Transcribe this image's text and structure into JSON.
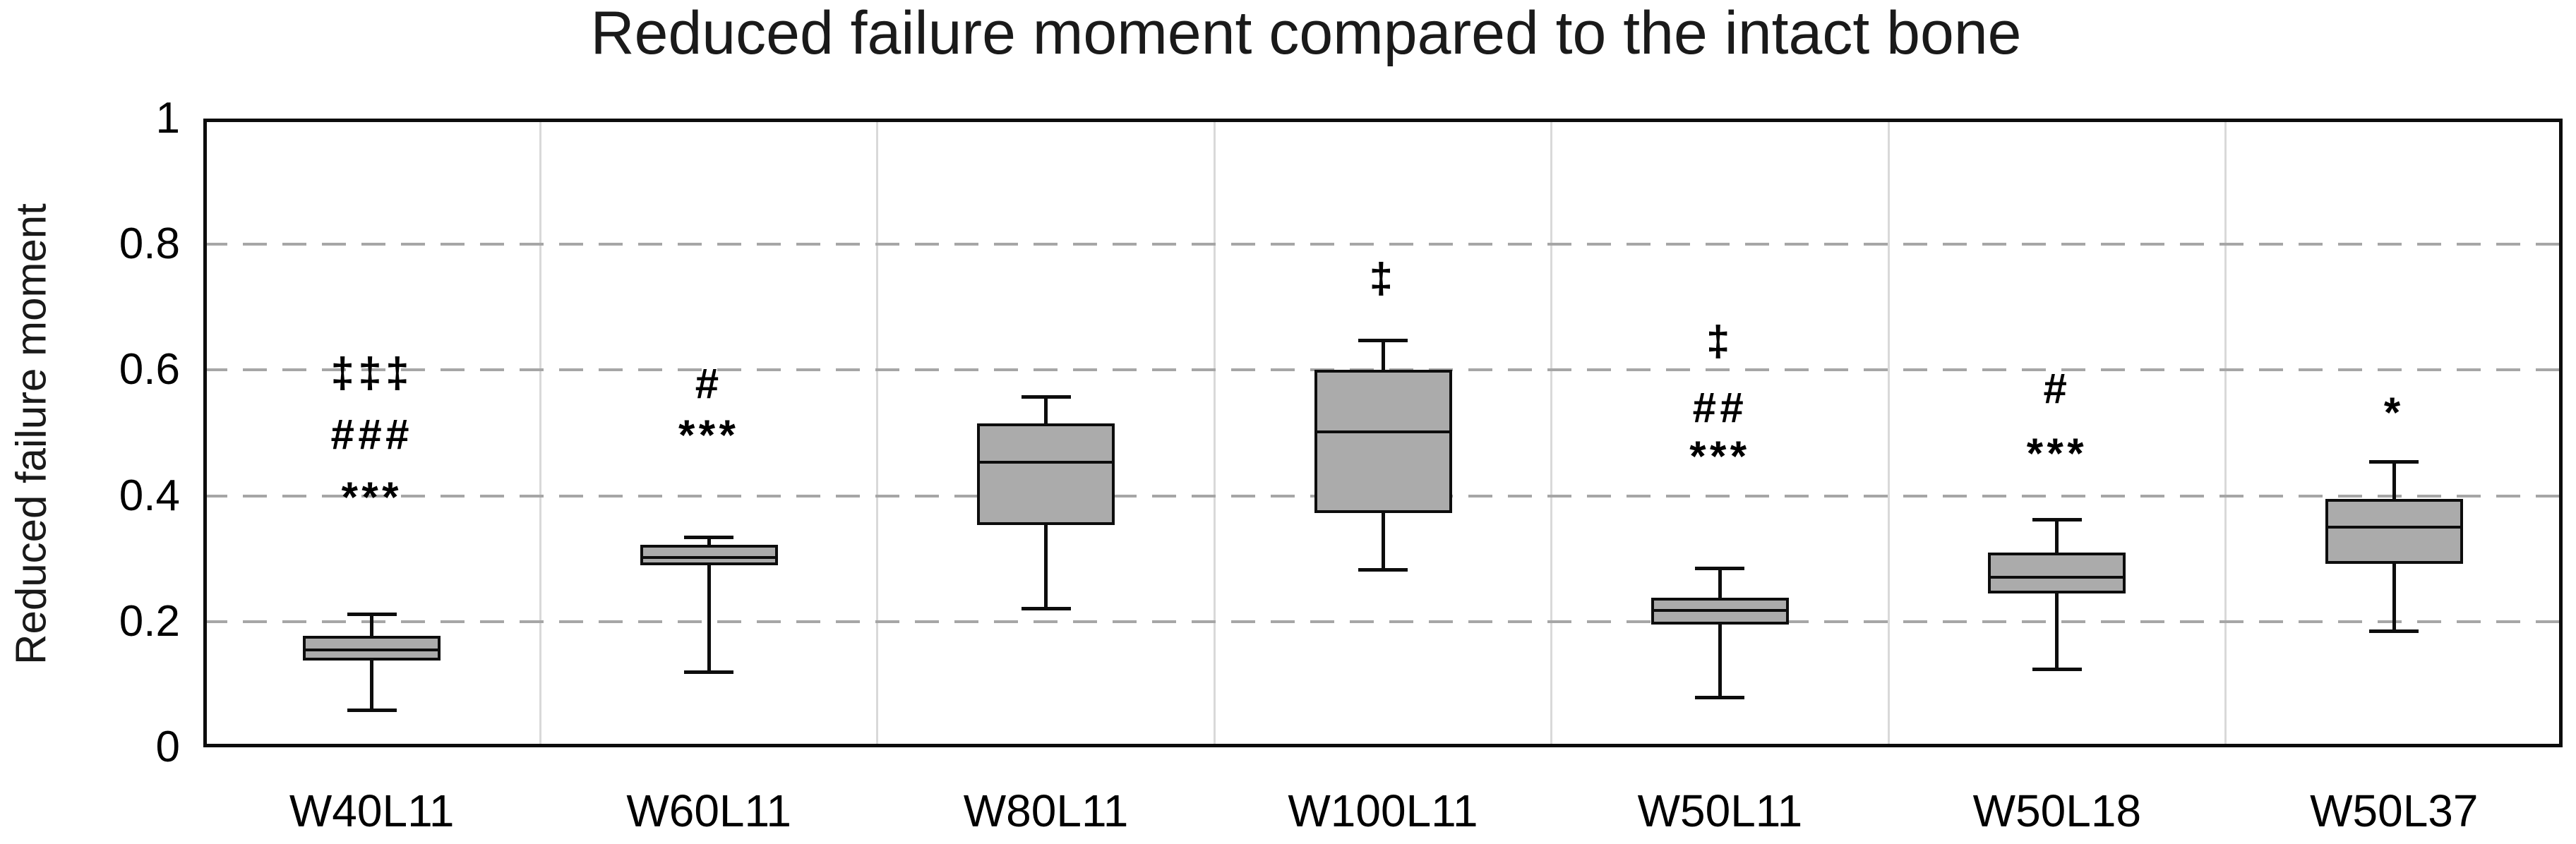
{
  "title": "Reduced failure moment compared to the intact bone",
  "y_axis": {
    "label": "Reduced failure moment",
    "tick_labels": [
      "1",
      "0.8",
      "0.6",
      "0.4",
      "0.2",
      "0"
    ],
    "tick_values": [
      1,
      0.8,
      0.6,
      0.4,
      0.2,
      0
    ]
  },
  "chart_data": {
    "type": "box",
    "title": "Reduced failure moment compared to the intact bone",
    "xlabel": "",
    "ylabel": "Reduced failure moment",
    "ylim": [
      0,
      1
    ],
    "yticks": [
      0,
      0.2,
      0.4,
      0.6,
      0.8,
      1
    ],
    "grid": {
      "horizontal": "dashed gray lines at 0.2, 0.4, 0.6, 0.8",
      "vertical": "light solid separators between the 7 category columns",
      "legend": "none"
    },
    "categories": [
      "W40L11",
      "W60L11",
      "W80L11",
      "W100L11",
      "W50L11",
      "W50L18",
      "W50L37"
    ],
    "series": [
      {
        "category": "W40L11",
        "whisker_low": 0.06,
        "q1": 0.138,
        "median": 0.155,
        "q3": 0.177,
        "whisker_high": 0.212,
        "annotations": [
          {
            "text": "‡‡‡",
            "y": 0.595
          },
          {
            "text": "###",
            "y": 0.497
          },
          {
            "text": "***",
            "y": 0.413
          }
        ]
      },
      {
        "category": "W60L11",
        "whisker_low": 0.12,
        "q1": 0.289,
        "median": 0.302,
        "q3": 0.322,
        "whisker_high": 0.335,
        "annotations": [
          {
            "text": "#",
            "y": 0.578
          },
          {
            "text": "***",
            "y": 0.512
          }
        ]
      },
      {
        "category": "W80L11",
        "whisker_low": 0.221,
        "q1": 0.354,
        "median": 0.453,
        "q3": 0.515,
        "whisker_high": 0.558,
        "annotations": []
      },
      {
        "category": "W100L11",
        "whisker_low": 0.283,
        "q1": 0.373,
        "median": 0.502,
        "q3": 0.601,
        "whisker_high": 0.648,
        "annotations": [
          {
            "text": "‡",
            "y": 0.745
          }
        ]
      },
      {
        "category": "W50L11",
        "whisker_low": 0.08,
        "q1": 0.195,
        "median": 0.218,
        "q3": 0.238,
        "whisker_high": 0.285,
        "annotations": [
          {
            "text": "‡",
            "y": 0.645
          },
          {
            "text": "##",
            "y": 0.54
          },
          {
            "text": "***",
            "y": 0.478
          }
        ]
      },
      {
        "category": "W50L18",
        "whisker_low": 0.125,
        "q1": 0.245,
        "median": 0.27,
        "q3": 0.31,
        "whisker_high": 0.362,
        "annotations": [
          {
            "text": "#",
            "y": 0.57
          },
          {
            "text": "***",
            "y": 0.483
          }
        ]
      },
      {
        "category": "W50L37",
        "whisker_low": 0.185,
        "q1": 0.292,
        "median": 0.35,
        "q3": 0.395,
        "whisker_high": 0.455,
        "annotations": [
          {
            "text": "*",
            "y": 0.548
          }
        ]
      }
    ],
    "style": {
      "box_fill": "#ABABAB",
      "box_border": "#0D0D0D",
      "gridline_color": "#A6A6A6",
      "separator_color": "#D9D9D9",
      "axis_border_color": "#0D0D0D",
      "text_color": "#000000",
      "background": "#FFFFFF"
    }
  }
}
